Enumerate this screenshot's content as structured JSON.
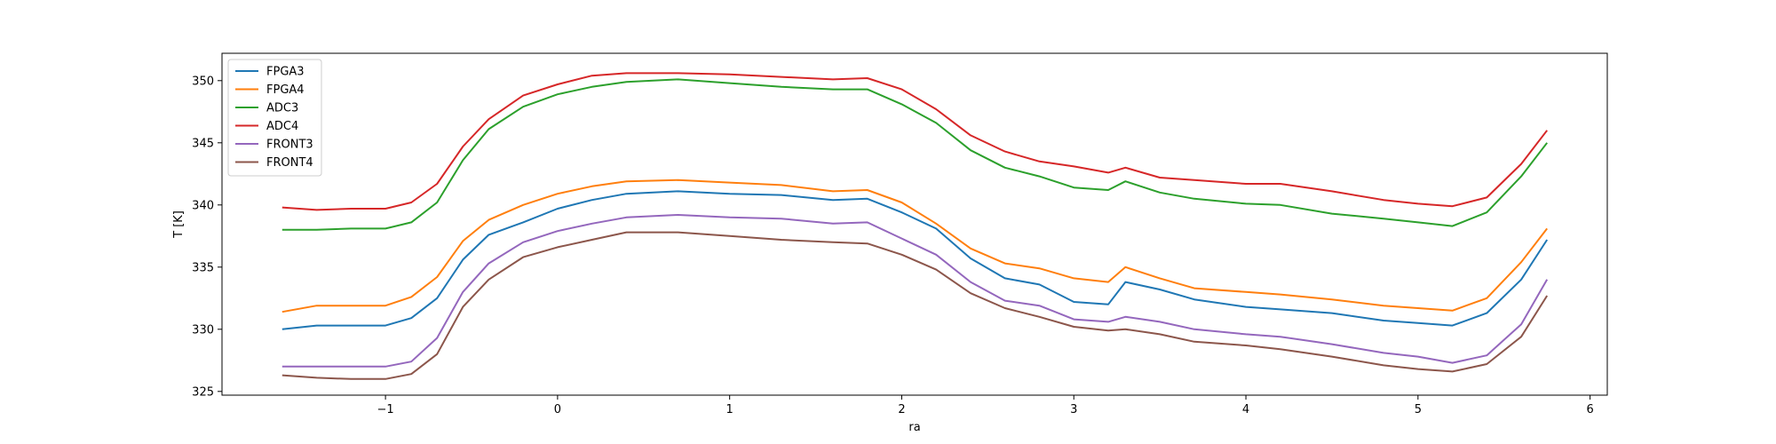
{
  "chart_data": {
    "type": "line",
    "title": "",
    "xlabel": "ra",
    "ylabel": "T [K]",
    "xlim": [
      -1.95,
      6.1
    ],
    "ylim": [
      324.7,
      352.2
    ],
    "xticks": [
      -1,
      0,
      1,
      2,
      3,
      4,
      5,
      6
    ],
    "xtick_labels": [
      "−1",
      "0",
      "1",
      "2",
      "3",
      "4",
      "5",
      "6"
    ],
    "yticks": [
      325,
      330,
      335,
      340,
      345,
      350
    ],
    "ytick_labels": [
      "325",
      "330",
      "335",
      "340",
      "345",
      "350"
    ],
    "grid": false,
    "legend_position": "upper-left",
    "x": [
      -1.6,
      -1.4,
      -1.2,
      -1.0,
      -0.85,
      -0.7,
      -0.55,
      -0.4,
      -0.2,
      0.0,
      0.2,
      0.4,
      0.7,
      1.0,
      1.3,
      1.6,
      1.8,
      2.0,
      2.2,
      2.4,
      2.6,
      2.8,
      3.0,
      3.2,
      3.3,
      3.5,
      3.7,
      4.0,
      4.2,
      4.5,
      4.8,
      5.0,
      5.2,
      5.4,
      5.6,
      5.75
    ],
    "series": [
      {
        "name": "FPGA3",
        "color": "#1f77b4",
        "values": [
          330.0,
          330.3,
          330.3,
          330.3,
          330.9,
          332.5,
          335.6,
          337.6,
          338.6,
          339.7,
          340.4,
          340.9,
          341.1,
          340.9,
          340.8,
          340.4,
          340.5,
          339.4,
          338.1,
          335.7,
          334.1,
          333.6,
          332.2,
          332.0,
          333.8,
          333.2,
          332.4,
          331.8,
          331.6,
          331.3,
          330.7,
          330.5,
          330.3,
          331.3,
          334.0,
          337.2
        ]
      },
      {
        "name": "FPGA4",
        "color": "#ff7f0e",
        "values": [
          331.4,
          331.9,
          331.9,
          331.9,
          332.6,
          334.2,
          337.1,
          338.8,
          340.0,
          340.9,
          341.5,
          341.9,
          342.0,
          341.8,
          341.6,
          341.1,
          341.2,
          340.2,
          338.5,
          336.5,
          335.3,
          334.9,
          334.1,
          333.8,
          335.0,
          334.1,
          333.3,
          333.0,
          332.8,
          332.4,
          331.9,
          331.7,
          331.5,
          332.5,
          335.4,
          338.1
        ]
      },
      {
        "name": "ADC3",
        "color": "#2ca02c",
        "values": [
          338.0,
          338.0,
          338.1,
          338.1,
          338.6,
          340.2,
          343.6,
          346.1,
          347.9,
          348.9,
          349.5,
          349.9,
          350.1,
          349.8,
          349.5,
          349.3,
          349.3,
          348.1,
          346.6,
          344.4,
          343.0,
          342.3,
          341.4,
          341.2,
          341.9,
          341.0,
          340.5,
          340.1,
          340.0,
          339.3,
          338.9,
          338.6,
          338.3,
          339.4,
          342.3,
          345.0
        ]
      },
      {
        "name": "ADC4",
        "color": "#d62728",
        "values": [
          339.8,
          339.6,
          339.7,
          339.7,
          340.2,
          341.7,
          344.7,
          346.9,
          348.8,
          349.7,
          350.4,
          350.6,
          350.6,
          350.5,
          350.3,
          350.1,
          350.2,
          349.3,
          347.7,
          345.6,
          344.3,
          343.5,
          343.1,
          342.6,
          343.0,
          342.2,
          342.0,
          341.7,
          341.7,
          341.1,
          340.4,
          340.1,
          339.9,
          340.6,
          343.3,
          346.0
        ]
      },
      {
        "name": "FRONT3",
        "color": "#9467bd",
        "values": [
          327.0,
          327.0,
          327.0,
          327.0,
          327.4,
          329.3,
          333.0,
          335.3,
          337.0,
          337.9,
          338.5,
          339.0,
          339.2,
          339.0,
          338.9,
          338.5,
          338.6,
          337.3,
          336.0,
          333.8,
          332.3,
          331.9,
          330.8,
          330.6,
          331.0,
          330.6,
          330.0,
          329.6,
          329.4,
          328.8,
          328.1,
          327.8,
          327.3,
          327.9,
          330.4,
          334.0
        ]
      },
      {
        "name": "FRONT4",
        "color": "#8c564b",
        "values": [
          326.3,
          326.1,
          326.0,
          326.0,
          326.4,
          328.0,
          331.8,
          334.0,
          335.8,
          336.6,
          337.2,
          337.8,
          337.8,
          337.5,
          337.2,
          337.0,
          336.9,
          336.0,
          334.8,
          332.9,
          331.7,
          331.0,
          330.2,
          329.9,
          330.0,
          329.6,
          329.0,
          328.7,
          328.4,
          327.8,
          327.1,
          326.8,
          326.6,
          327.2,
          329.4,
          332.7
        ]
      }
    ]
  }
}
